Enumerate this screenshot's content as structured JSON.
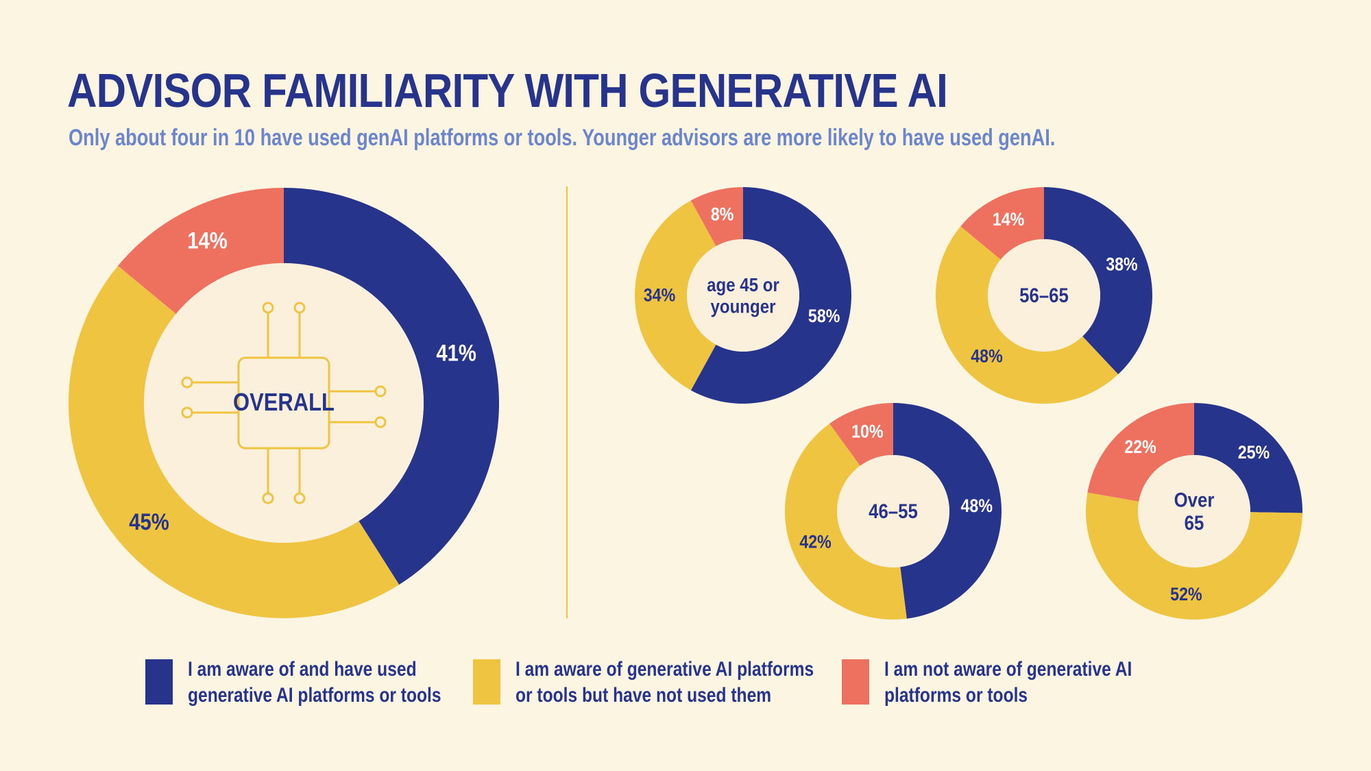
{
  "header": {
    "title": "ADVISOR FAMILIARITY WITH GENERATIVE AI",
    "subtitle": "Only about four in 10 have used genAI platforms or tools. Younger advisors are more likely to have used genAI."
  },
  "colors": {
    "background": "#fcf5e1",
    "used": "#27348b",
    "aware_not_used": "#efc441",
    "not_aware": "#ee705e",
    "center": "#fbf0dc",
    "title": "#27348b",
    "subtitle": "#6b86cc"
  },
  "center_icon": "circuit-chip-icon",
  "legend": [
    {
      "line1": "I am aware of and have used",
      "line2": "generative AI platforms or tools",
      "color": "#27348b"
    },
    {
      "line1": "I am aware of generative AI platforms",
      "line2": "or tools but have not used them",
      "color": "#efc441"
    },
    {
      "line1": "I am not aware of generative AI",
      "line2": "platforms or tools",
      "color": "#ee705e"
    }
  ],
  "chart_data": [
    {
      "type": "pie",
      "id": "overall",
      "center_label": [
        "OVERALL"
      ],
      "categories": [
        "I am aware of and have used generative AI platforms or tools",
        "I am aware of generative AI platforms or tools but have not used them",
        "I am not aware of generative AI platforms or tools"
      ],
      "values": [
        41,
        45,
        14
      ],
      "labels": [
        "41%",
        "45%",
        "14%"
      ]
    },
    {
      "type": "pie",
      "id": "age45",
      "center_label": [
        "age 45 or",
        "younger"
      ],
      "values": [
        58,
        34,
        8
      ],
      "labels": [
        "58%",
        "34%",
        "8%"
      ]
    },
    {
      "type": "pie",
      "id": "age56",
      "center_label": [
        "56–65"
      ],
      "values": [
        38,
        48,
        14
      ],
      "labels": [
        "38%",
        "48%",
        "14%"
      ]
    },
    {
      "type": "pie",
      "id": "age46",
      "center_label": [
        "46–55"
      ],
      "values": [
        48,
        42,
        10
      ],
      "labels": [
        "48%",
        "42%",
        "10%"
      ]
    },
    {
      "type": "pie",
      "id": "over65",
      "center_label": [
        "Over",
        "65"
      ],
      "values": [
        25,
        52,
        22
      ],
      "labels": [
        "25%",
        "52%",
        "22%"
      ]
    }
  ]
}
